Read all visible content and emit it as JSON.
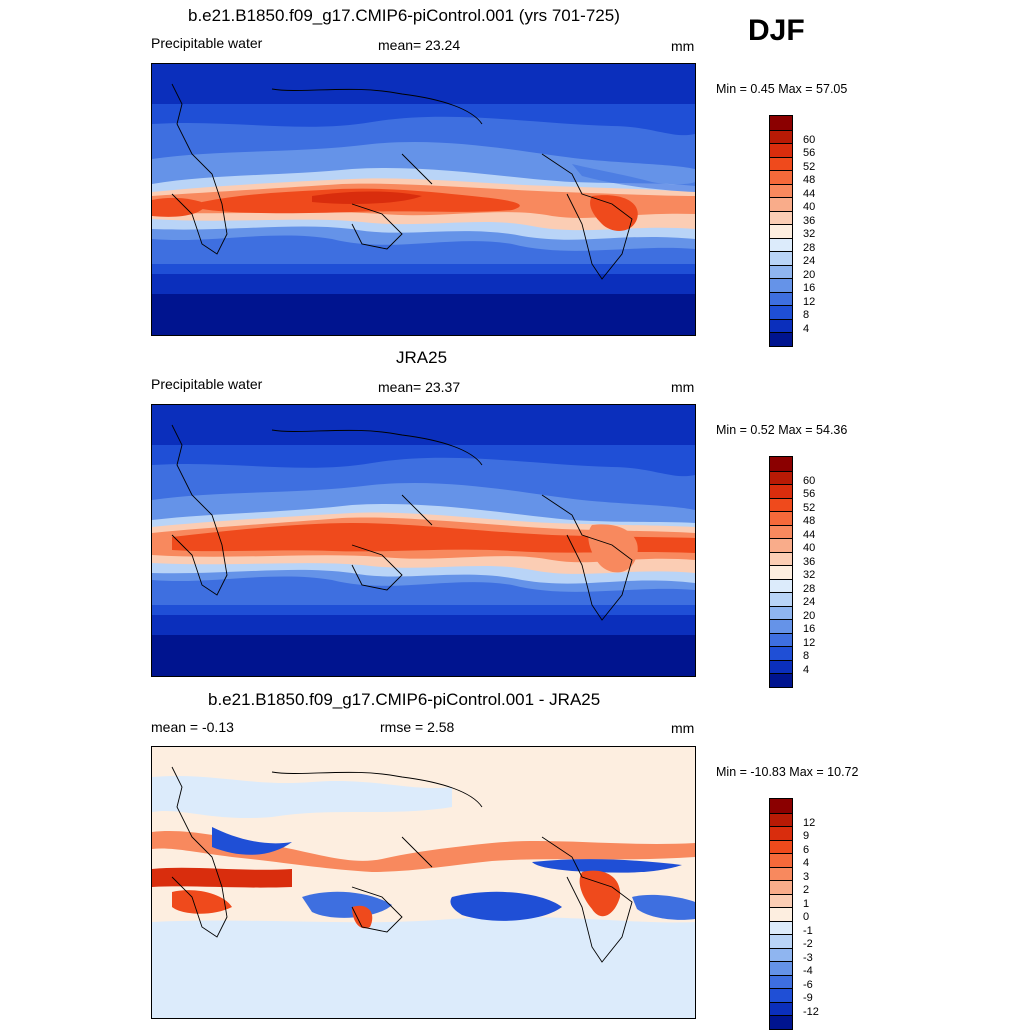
{
  "season": "DJF",
  "panels": [
    {
      "title": "b.e21.B1850.f09_g17.CMIP6-piControl.001 (yrs 701-725)",
      "left": "Precipitable water",
      "center": "mean=  23.24",
      "units": "mm",
      "minmax": "Min =   0.45 Max =  57.05"
    },
    {
      "title": "JRA25",
      "left": "Precipitable water",
      "center": "mean=  23.37",
      "units": "mm",
      "minmax": "Min =   0.52 Max =  54.36"
    },
    {
      "title": "b.e21.B1850.f09_g17.CMIP6-piControl.001 - JRA25",
      "left": "mean =  -0.13",
      "center": "rmse =   2.58",
      "units": "mm",
      "minmax": "Min = -10.83 Max =  10.72"
    }
  ],
  "chart_data": [
    {
      "type": "heatmap",
      "title": "b.e21.B1850.f09_g17.CMIP6-piControl.001 (yrs 701-725)",
      "variable": "Precipitable water",
      "units": "mm",
      "mean": 23.24,
      "min": 0.45,
      "max": 57.05,
      "colorbar_labels": [
        "60",
        "56",
        "52",
        "48",
        "44",
        "40",
        "36",
        "32",
        "28",
        "24",
        "20",
        "16",
        "12",
        "8",
        "4"
      ],
      "colorbar_colors": [
        "#8b0000",
        "#b81a05",
        "#d92d0d",
        "#ef4a1c",
        "#f5693a",
        "#f8895e",
        "#f9ac8a",
        "#fbcdb4",
        "#fdeee0",
        "#dcebfb",
        "#b9d4f7",
        "#8fb5f0",
        "#6593e8",
        "#3e6fe0",
        "#1f4fd6",
        "#0b2fbc",
        "#00148f"
      ]
    },
    {
      "type": "heatmap",
      "title": "JRA25",
      "variable": "Precipitable water",
      "units": "mm",
      "mean": 23.37,
      "min": 0.52,
      "max": 54.36,
      "colorbar_labels": [
        "60",
        "56",
        "52",
        "48",
        "44",
        "40",
        "36",
        "32",
        "28",
        "24",
        "20",
        "16",
        "12",
        "8",
        "4"
      ],
      "colorbar_colors": [
        "#8b0000",
        "#b81a05",
        "#d92d0d",
        "#ef4a1c",
        "#f5693a",
        "#f8895e",
        "#f9ac8a",
        "#fbcdb4",
        "#fdeee0",
        "#dcebfb",
        "#b9d4f7",
        "#8fb5f0",
        "#6593e8",
        "#3e6fe0",
        "#1f4fd6",
        "#0b2fbc",
        "#00148f"
      ]
    },
    {
      "type": "heatmap",
      "title": "b.e21.B1850.f09_g17.CMIP6-piControl.001 - JRA25",
      "units": "mm",
      "mean": -0.13,
      "rmse": 2.58,
      "min": -10.83,
      "max": 10.72,
      "colorbar_labels": [
        "12",
        "9",
        "6",
        "4",
        "3",
        "2",
        "1",
        "0",
        "-1",
        "-2",
        "-3",
        "-4",
        "-6",
        "-9",
        "-12"
      ],
      "colorbar_colors": [
        "#8b0000",
        "#b81a05",
        "#d92d0d",
        "#ef4a1c",
        "#f5693a",
        "#f8895e",
        "#f9ac8a",
        "#fbcdb4",
        "#fdeee0",
        "#dcebfb",
        "#b9d4f7",
        "#8fb5f0",
        "#6593e8",
        "#3e6fe0",
        "#1f4fd6",
        "#0b2fbc",
        "#00148f"
      ]
    }
  ]
}
